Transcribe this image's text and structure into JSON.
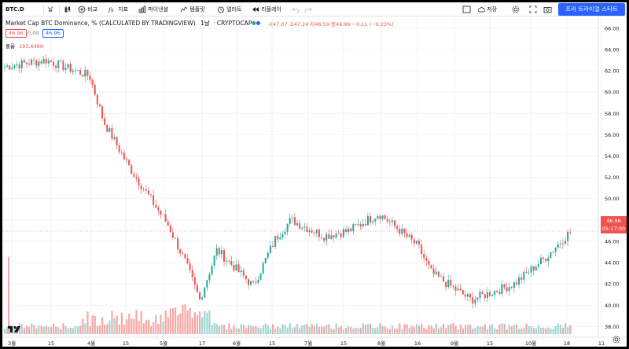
{
  "toolbar": {
    "symbol": "BTC.D",
    "interval": "날",
    "compare_label": "비교",
    "indicators_label": "지표",
    "fin_label": "파이낸셜",
    "templates_label": "템플릿",
    "alert_label": "얼러트",
    "replay_label": "리플레이",
    "save_label": "저장",
    "trial_label": "프리 트라이얼 스타트"
  },
  "legend": {
    "title": "Market Cap BTC Dominance, % (CALCULATED BY TRADINGVIEW)",
    "interval": "1날",
    "exchange": "CRYPTOCAP",
    "ohlc": "시47.07 고47.24 저46.59 종46.96 −0.11 (−0.23%)",
    "bid": "46.96",
    "spread": "0.00",
    "ask": "46.96",
    "volume_label": "볼륨",
    "volume_value": "193.6488"
  },
  "price_axis": {
    "labels": [
      "66.00",
      "64.00",
      "62.00",
      "60.00",
      "58.00",
      "56.00",
      "54.00",
      "52.00",
      "50.00",
      "48.00",
      "46.00",
      "44.00",
      "42.00",
      "40.00",
      "38.00"
    ],
    "last_price": "46.96",
    "countdown": "05:17:00"
  },
  "time_axis": {
    "labels": [
      "3월",
      "15",
      "4월",
      "15",
      "5월",
      "17",
      "6월",
      "15",
      "7월",
      "15",
      "8월",
      "16",
      "9월",
      "15",
      "10월",
      "18",
      "11"
    ]
  },
  "colors": {
    "up": "#26a69a",
    "down": "#ef5350",
    "accent": "#2962ff"
  },
  "chart_data": {
    "type": "candlestick",
    "ylim": [
      37,
      66.5
    ],
    "anchors": [
      {
        "x": "3월 초",
        "y": 62.4
      },
      {
        "x": "3월 15",
        "y": 63.0
      },
      {
        "x": "4월",
        "y": 61.5
      },
      {
        "x": "4월 초",
        "y": 57.2
      },
      {
        "x": "4월 15",
        "y": 53.0
      },
      {
        "x": "5월",
        "y": 47.5
      },
      {
        "x": "5월 중",
        "y": 44.0
      },
      {
        "x": "5월 17",
        "y": 40.5
      },
      {
        "x": "5월 말",
        "y": 45.2
      },
      {
        "x": "6월",
        "y": 41.8
      },
      {
        "x": "6월 중",
        "y": 46.2
      },
      {
        "x": "6월 말",
        "y": 48.0
      },
      {
        "x": "7월",
        "y": 46.5
      },
      {
        "x": "7월 15",
        "y": 47.0
      },
      {
        "x": "8월",
        "y": 48.6
      },
      {
        "x": "8월 중",
        "y": 47.3
      },
      {
        "x": "8월 16",
        "y": 45.5
      },
      {
        "x": "9월",
        "y": 43.0
      },
      {
        "x": "9월 15",
        "y": 40.5
      },
      {
        "x": "10월",
        "y": 42.0
      },
      {
        "x": "10월 18",
        "y": 44.5
      },
      {
        "x": "10월 말",
        "y": 46.96
      }
    ]
  }
}
